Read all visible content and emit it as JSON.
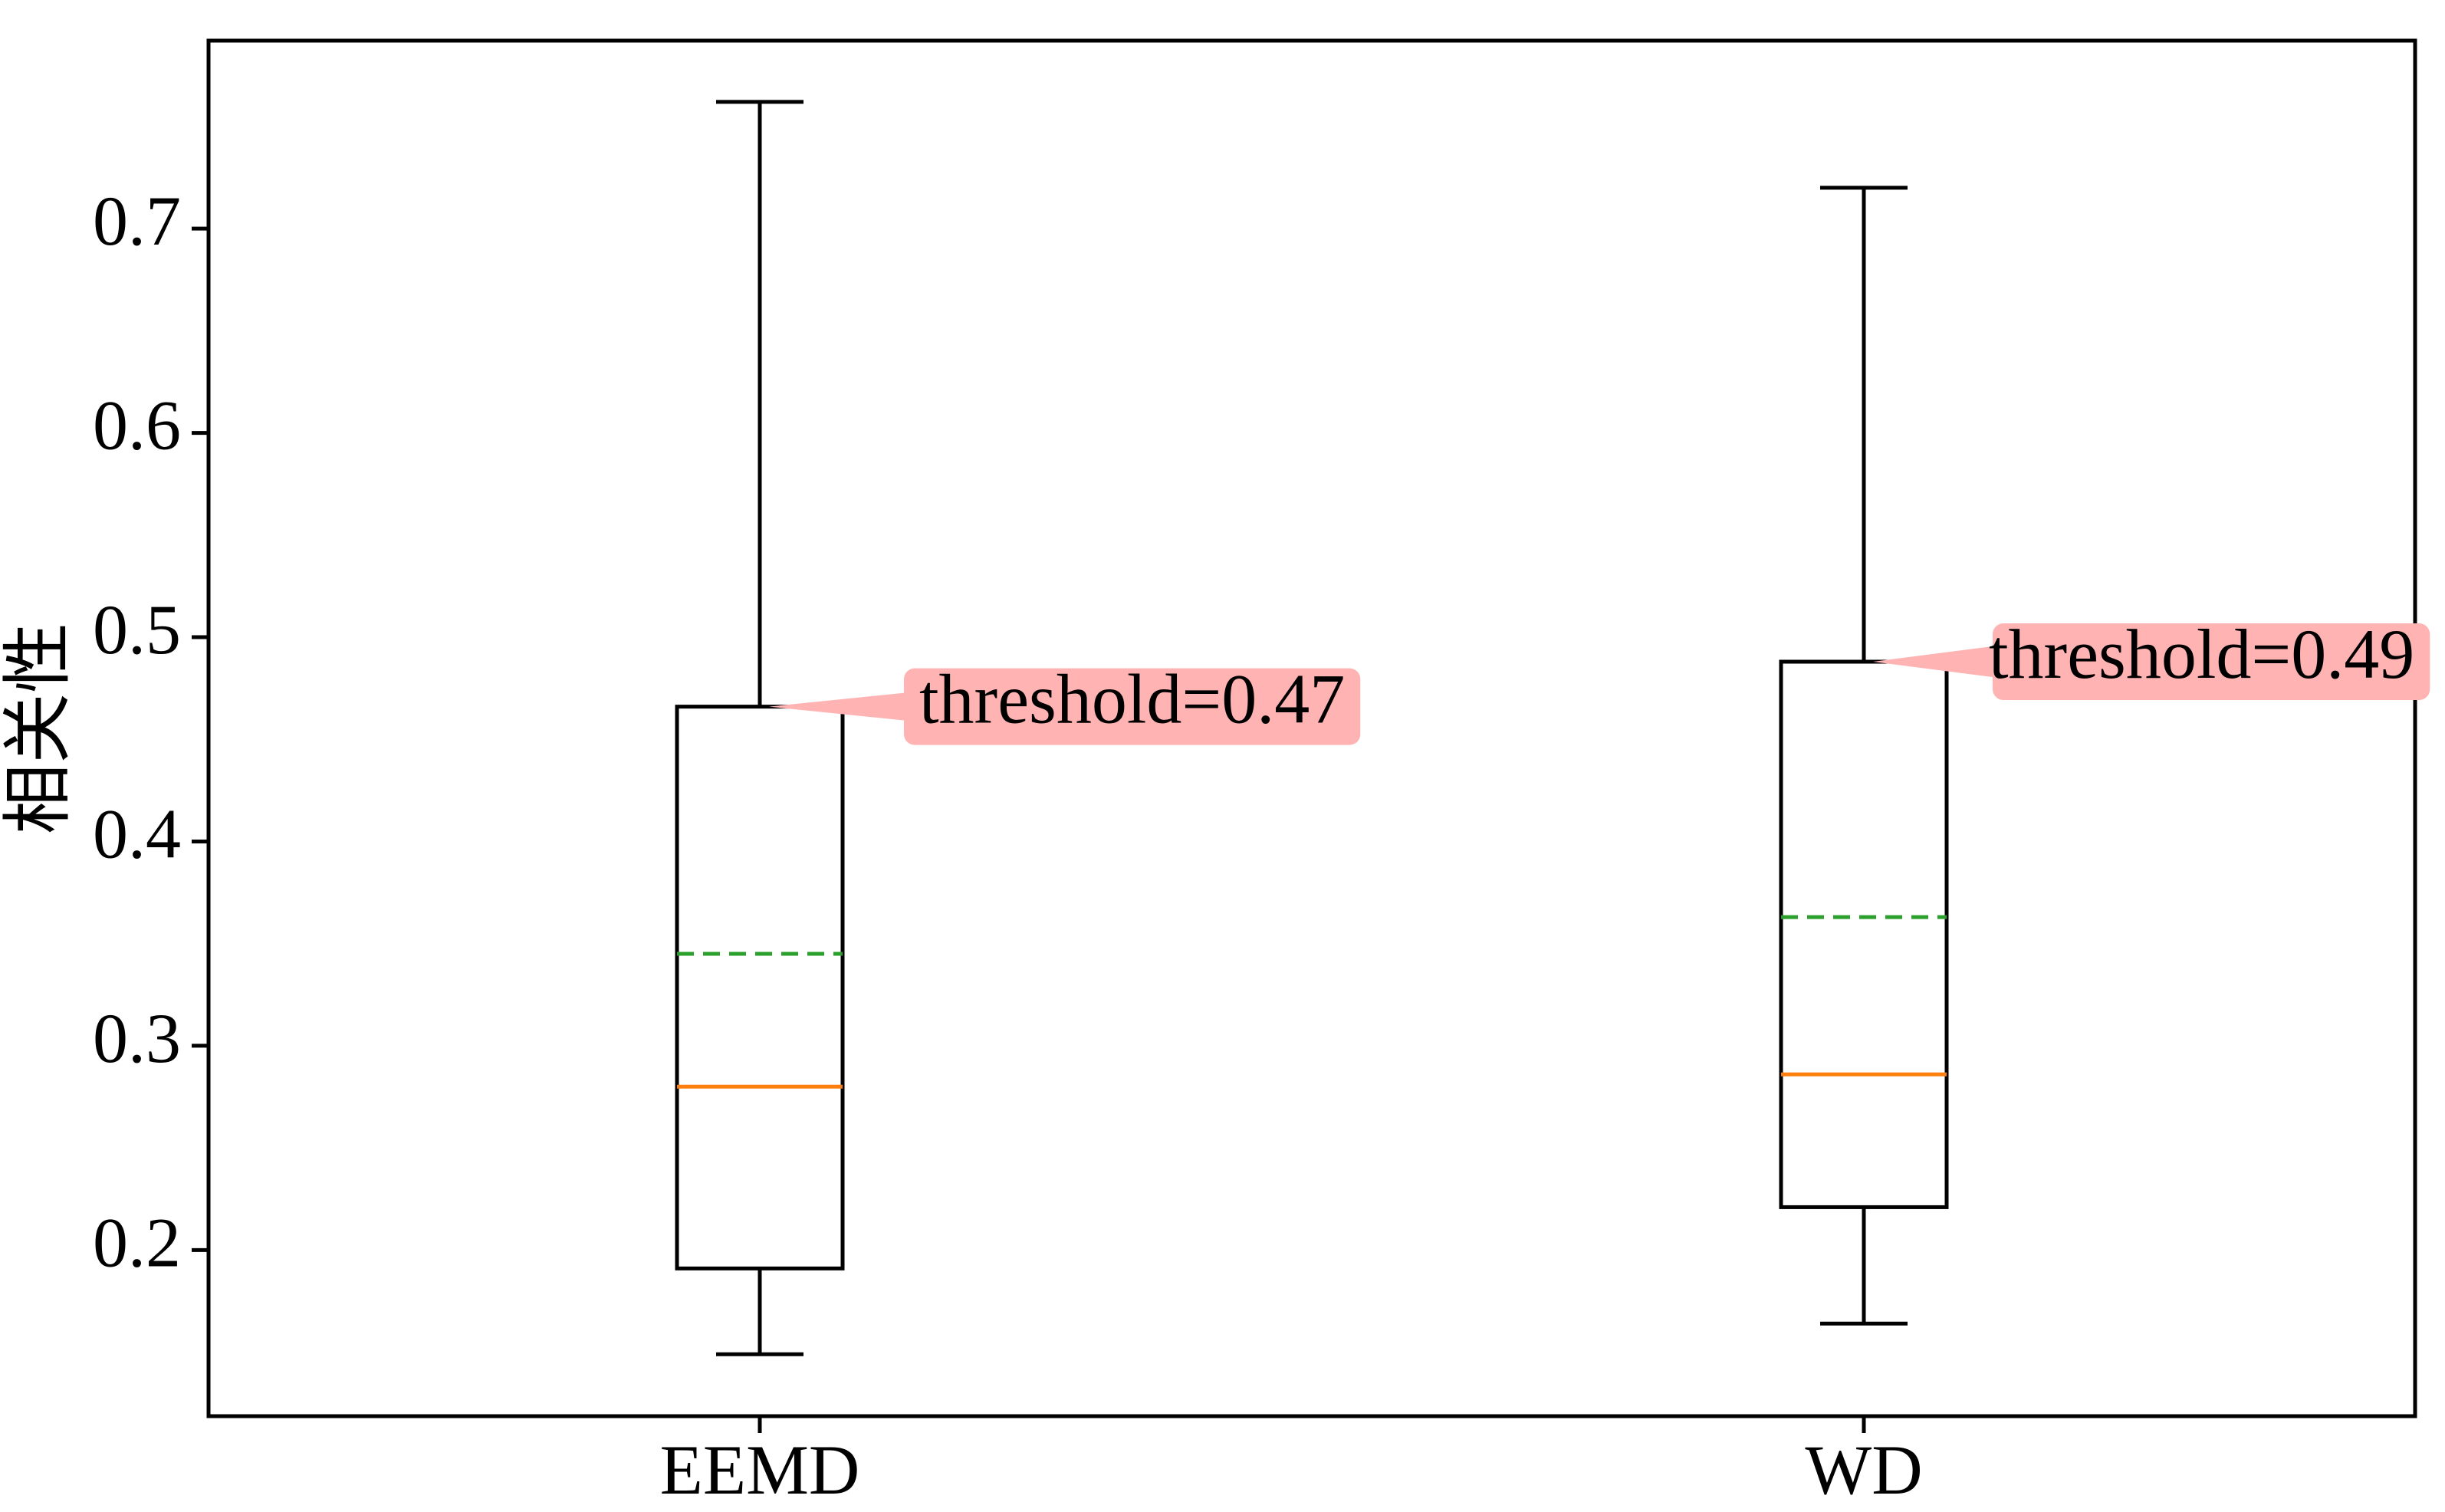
{
  "chart_data": {
    "type": "box",
    "ylabel": "相关性",
    "categories": [
      "EEMD",
      "WD"
    ],
    "boxes": [
      {
        "whislo": 0.149,
        "q1": 0.191,
        "med": 0.28,
        "q3": 0.466,
        "whishi": 0.762,
        "mean": 0.345
      },
      {
        "whislo": 0.164,
        "q1": 0.221,
        "med": 0.286,
        "q3": 0.488,
        "whishi": 0.72,
        "mean": 0.363
      }
    ],
    "box_color": "#000000",
    "median_color": "#ff7f0e",
    "mean_color": "#2ca02c",
    "annotations": [
      {
        "text": "threshold=0.47",
        "color": "#ffb3b3"
      },
      {
        "text": "threshold=0.49",
        "color": "#ffb3b3"
      }
    ],
    "ylim": [
      0.1187,
      0.792
    ],
    "yticks": [
      0.2,
      0.3,
      0.4,
      0.5,
      0.6,
      0.7
    ]
  }
}
